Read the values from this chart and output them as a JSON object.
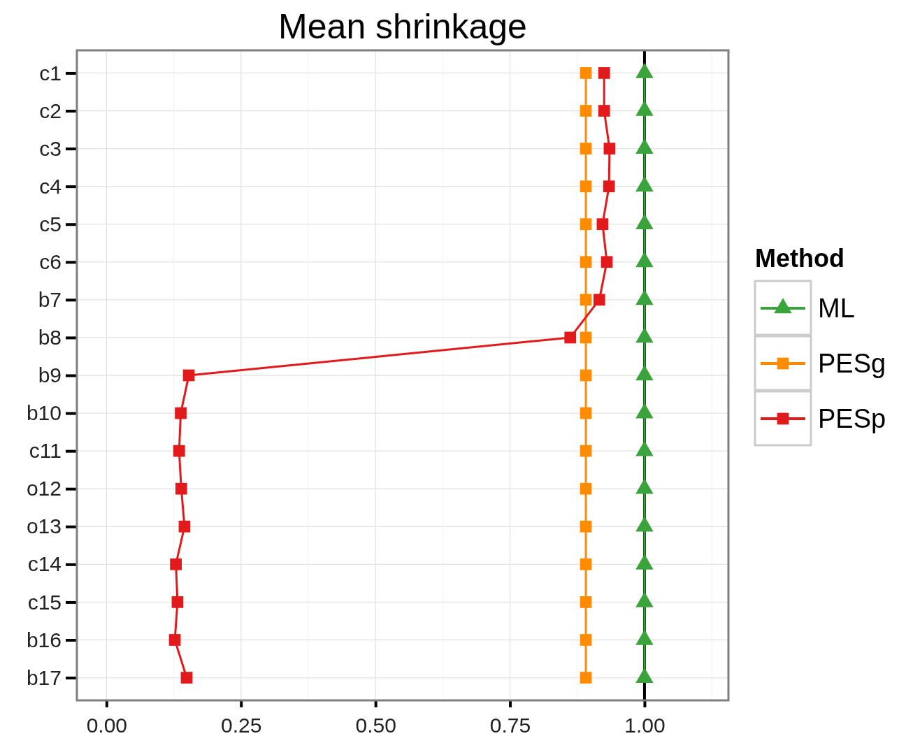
{
  "chart_data": {
    "type": "line",
    "title": "Mean shrinkage",
    "legend_title": "Method",
    "categories": [
      "c1",
      "c2",
      "c3",
      "c4",
      "c5",
      "c6",
      "b7",
      "b8",
      "b9",
      "b10",
      "c11",
      "o12",
      "o13",
      "c14",
      "c15",
      "b16",
      "b17"
    ],
    "orientation": "horizontal",
    "xlim": [
      -0.055,
      1.156
    ],
    "xticks": [
      {
        "value": 0,
        "label": "0.00"
      },
      {
        "value": 0.25,
        "label": "0.25"
      },
      {
        "value": 0.5,
        "label": "0.50"
      },
      {
        "value": 0.75,
        "label": "0.75"
      },
      {
        "value": 1,
        "label": "1.00"
      }
    ],
    "grid": true,
    "legend": "right",
    "ref_lines": [
      {
        "axis": "x",
        "value": 1,
        "color": "#000000"
      }
    ],
    "series": [
      {
        "name": "ML",
        "color": "#3ba33b",
        "marker": "triangle",
        "values": [
          1,
          1,
          1,
          1,
          1,
          1,
          1,
          1,
          1,
          1,
          1,
          1,
          1,
          1,
          1,
          1,
          1
        ]
      },
      {
        "name": "PESg",
        "color": "#ff8c00",
        "marker": "square",
        "values": [
          0.891,
          0.891,
          0.891,
          0.891,
          0.891,
          0.891,
          0.891,
          0.891,
          0.891,
          0.891,
          0.891,
          0.891,
          0.891,
          0.891,
          0.891,
          0.891,
          0.891
        ]
      },
      {
        "name": "PESp",
        "color": "#e31a1c",
        "marker": "square",
        "values": [
          0.925,
          0.925,
          0.935,
          0.934,
          0.922,
          0.93,
          0.916,
          0.862,
          0.153,
          0.138,
          0.135,
          0.139,
          0.145,
          0.129,
          0.132,
          0.127,
          0.149
        ]
      }
    ]
  }
}
